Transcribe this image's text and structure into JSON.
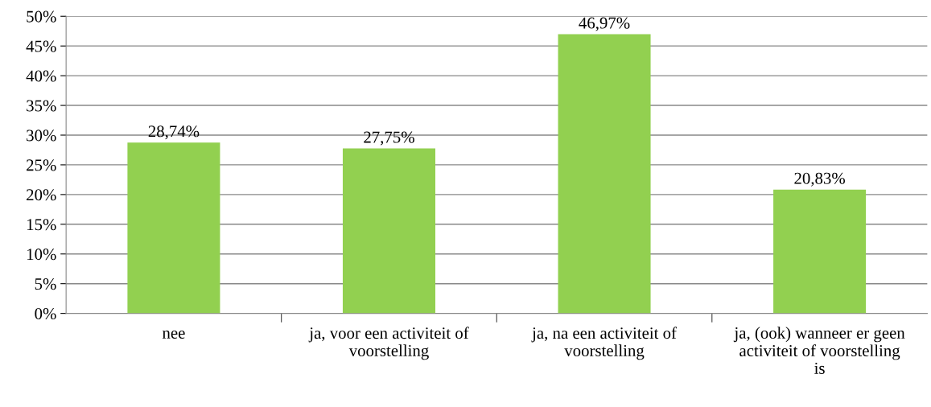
{
  "chart_data": {
    "type": "bar",
    "categories": [
      "nee",
      "ja, voor een activiteit of\nvoorstelling",
      "ja, na een activiteit of\nvoorstelling",
      "ja, (ook) wanneer er geen\nactiviteit of voorstelling\nis"
    ],
    "values": [
      28.74,
      27.75,
      46.97,
      20.83
    ],
    "value_labels": [
      "28,74%",
      "27,75%",
      "46,97%",
      "20,83%"
    ],
    "color": "#92d050",
    "ylim": [
      0,
      50
    ],
    "yticks": [
      {
        "value": 0,
        "label": "0%"
      },
      {
        "value": 5,
        "label": "5%"
      },
      {
        "value": 10,
        "label": "10%"
      },
      {
        "value": 15,
        "label": "15%"
      },
      {
        "value": 20,
        "label": "20%"
      },
      {
        "value": 25,
        "label": "25%"
      },
      {
        "value": 30,
        "label": "30%"
      },
      {
        "value": 35,
        "label": "35%"
      },
      {
        "value": 40,
        "label": "40%"
      },
      {
        "value": 45,
        "label": "45%"
      },
      {
        "value": 50,
        "label": "50%"
      }
    ],
    "grid": "y"
  }
}
